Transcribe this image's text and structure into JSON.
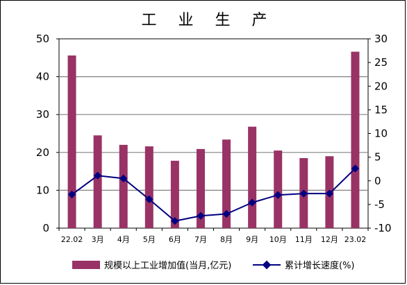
{
  "chart_data": {
    "type": "bar+line",
    "title": "工 业 生 产",
    "categories": [
      "22.02",
      "3月",
      "4月",
      "5月",
      "6月",
      "7月",
      "8月",
      "9月",
      "10月",
      "11月",
      "12月",
      "23.02"
    ],
    "series": [
      {
        "name": "规模以上工业增加值(当月,亿元)",
        "type": "bar",
        "axis": "left",
        "color": "#993366",
        "values": [
          45.6,
          24.5,
          22.0,
          21.6,
          17.8,
          20.9,
          23.4,
          26.8,
          20.5,
          18.5,
          19.0,
          46.6
        ]
      },
      {
        "name": "累计增长速度(%)",
        "type": "line",
        "axis": "right",
        "color": "#000080",
        "values": [
          -2.9,
          1.1,
          0.5,
          -3.9,
          -8.5,
          -7.4,
          -7.0,
          -4.6,
          -3.0,
          -2.7,
          -2.7,
          2.6
        ]
      }
    ],
    "left_axis": {
      "min": 0,
      "max": 50,
      "ticks": [
        0,
        10,
        20,
        30,
        40,
        50
      ]
    },
    "right_axis": {
      "min": -10,
      "max": 30,
      "ticks": [
        -10,
        -5,
        0,
        5,
        10,
        15,
        20,
        25,
        30
      ]
    },
    "grid": true,
    "legend_position": "bottom"
  }
}
